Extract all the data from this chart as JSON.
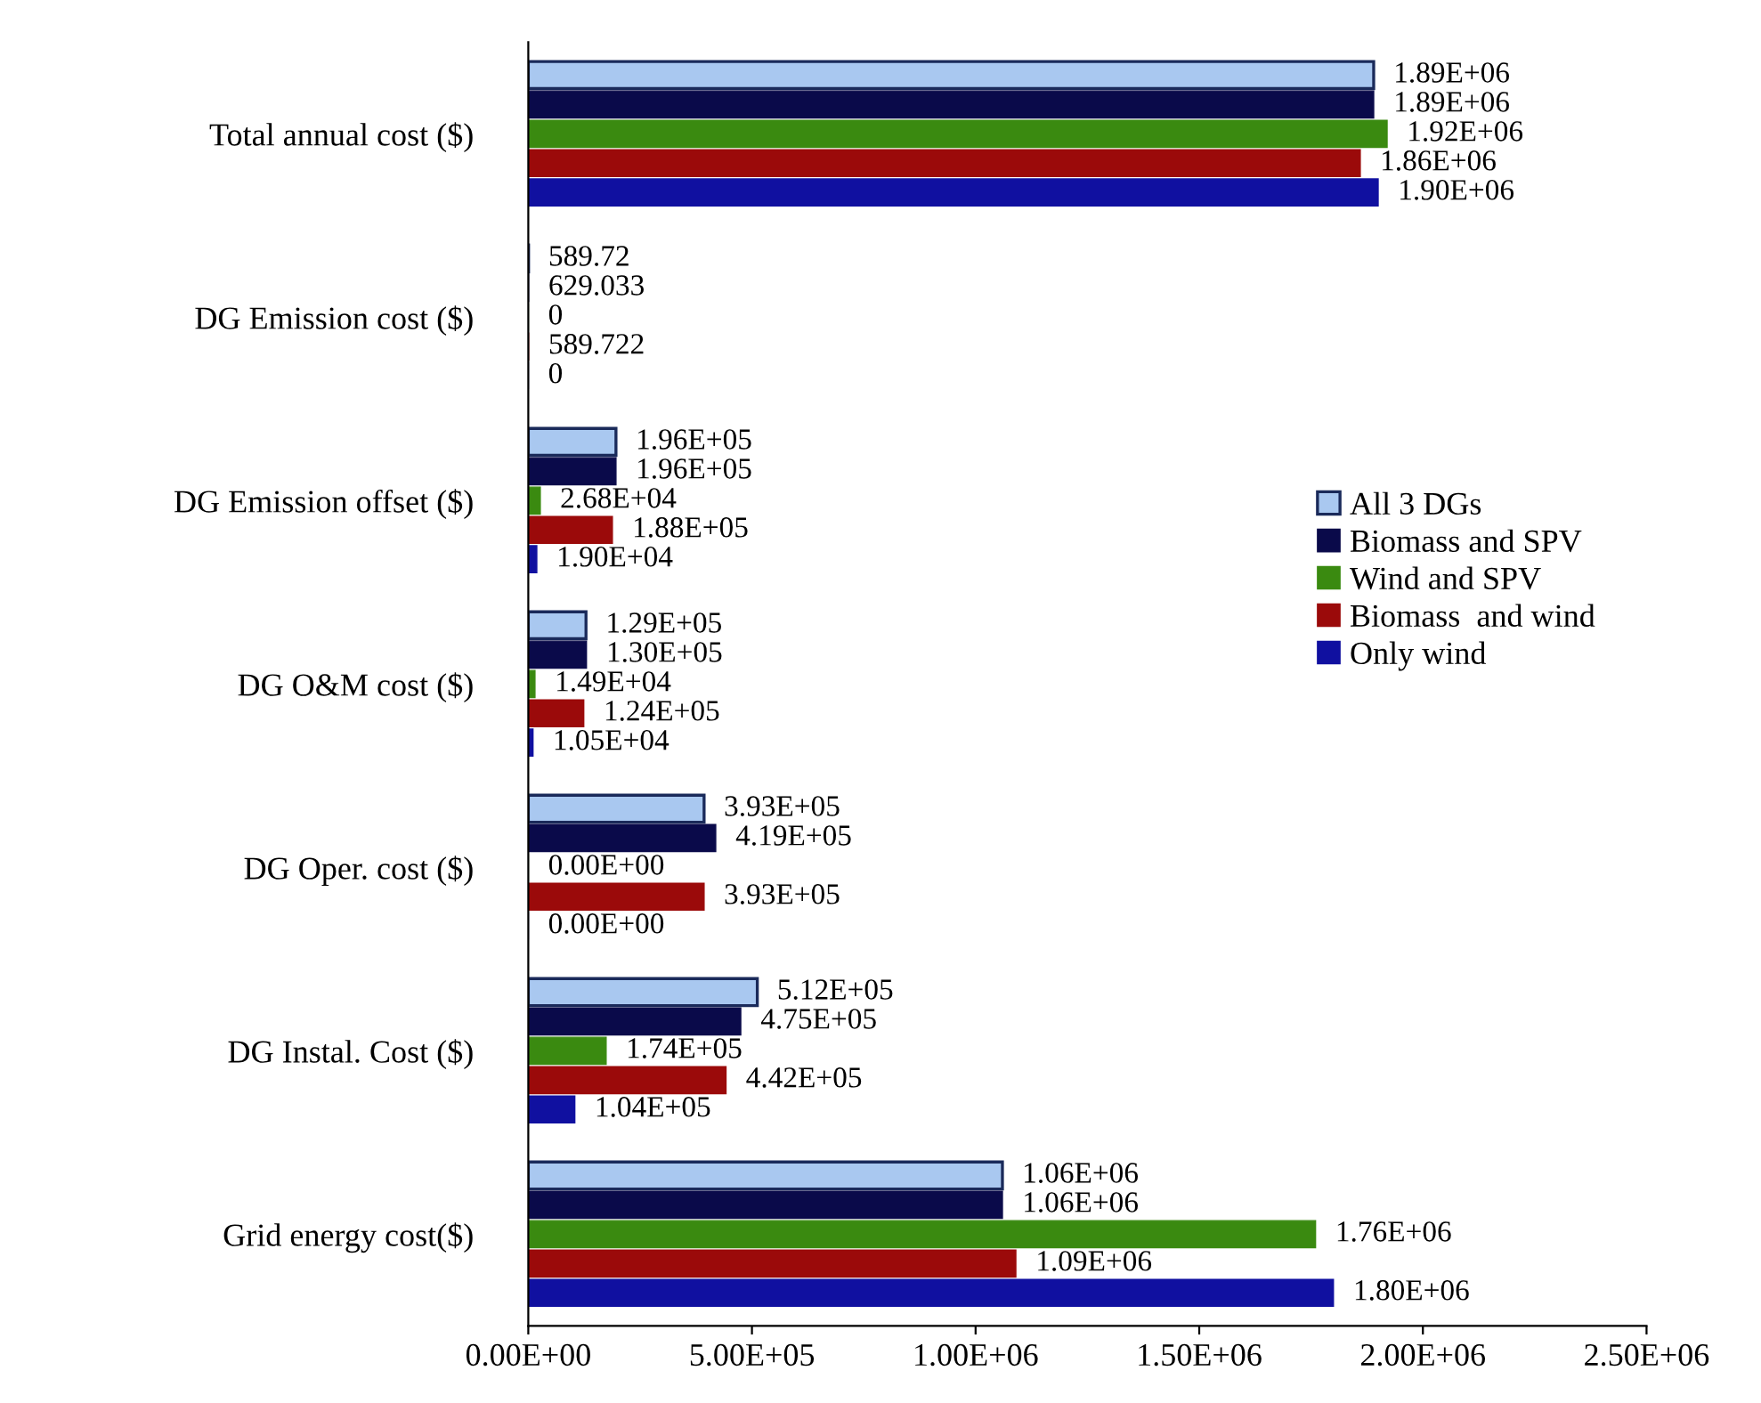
{
  "chart_data": {
    "type": "bar",
    "orientation": "horizontal",
    "categories": [
      "Total annual cost ($)",
      "DG Emission cost ($)",
      "DG Emission offset ($)",
      "DG O&M cost ($)",
      "DG Oper. cost ($)",
      "DG Instal. Cost ($)",
      "Grid energy cost($)"
    ],
    "series": [
      {
        "name": "All 3 DGs",
        "color": "#a9c8f0",
        "values": [
          1890000,
          589.72,
          196000,
          129000,
          393000,
          512000,
          1060000
        ],
        "value_labels": [
          "1.89E+06",
          "589.72",
          "1.96E+05",
          "1.29E+05",
          "3.93E+05",
          "5.12E+05",
          "1.06E+06"
        ]
      },
      {
        "name": "Biomass and SPV",
        "color": "#0a0a4a",
        "values": [
          1890000,
          629.033,
          196000,
          130000,
          419000,
          475000,
          1060000
        ],
        "value_labels": [
          "1.89E+06",
          "629.033",
          "1.96E+05",
          "1.30E+05",
          "4.19E+05",
          "4.75E+05",
          "1.06E+06"
        ]
      },
      {
        "name": "Wind and SPV",
        "color": "#3a8a10",
        "values": [
          1920000,
          0,
          26800,
          14900,
          0,
          174000,
          1760000
        ],
        "value_labels": [
          "1.92E+06",
          "0",
          "2.68E+04",
          "1.49E+04",
          "0.00E+00",
          "1.74E+05",
          "1.76E+06"
        ]
      },
      {
        "name": "Biomass  and wind",
        "color": "#9b0a0a",
        "values": [
          1860000,
          589.722,
          188000,
          124000,
          393000,
          442000,
          1090000
        ],
        "value_labels": [
          "1.86E+06",
          "589.722",
          "1.88E+05",
          "1.24E+05",
          "3.93E+05",
          "4.42E+05",
          "1.09E+06"
        ]
      },
      {
        "name": "Only wind",
        "color": "#1010a0",
        "values": [
          1900000,
          0,
          19000,
          10500,
          0,
          104000,
          1800000
        ],
        "value_labels": [
          "1.90E+06",
          "0",
          "1.90E+04",
          "1.05E+04",
          "0.00E+00",
          "1.04E+05",
          "1.80E+06"
        ]
      }
    ],
    "xlim": [
      0,
      2500000
    ],
    "xticks": [
      {
        "value": 0,
        "label": "0.00E+00"
      },
      {
        "value": 500000,
        "label": "5.00E+05"
      },
      {
        "value": 1000000,
        "label": "1.00E+06"
      },
      {
        "value": 1500000,
        "label": "1.50E+06"
      },
      {
        "value": 2000000,
        "label": "2.00E+06"
      },
      {
        "value": 2500000,
        "label": "2.50E+06"
      }
    ],
    "legend": "right",
    "grid": false
  }
}
